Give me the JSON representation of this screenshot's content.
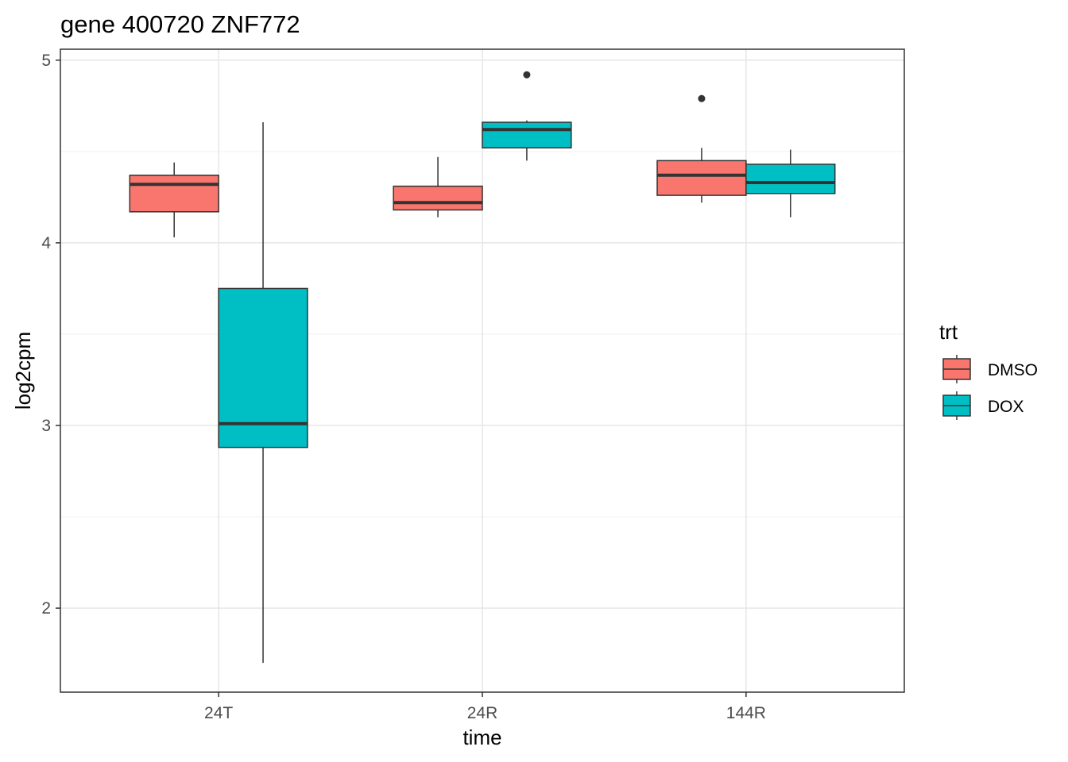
{
  "chart_data": {
    "type": "boxplot",
    "title": "gene 400720 ZNF772",
    "xlabel": "time",
    "ylabel": "log2cpm",
    "categories": [
      "24T",
      "24R",
      "144R"
    ],
    "ylim": [
      1.54,
      5.06
    ],
    "yticks": [
      2,
      3,
      4,
      5
    ],
    "grid": true,
    "legend": {
      "title": "trt",
      "position": "right",
      "entries": [
        "DMSO",
        "DOX"
      ]
    },
    "series": [
      {
        "name": "DMSO",
        "color": "#F8766D",
        "boxes": [
          {
            "category": "24T",
            "min": 4.03,
            "q1": 4.17,
            "median": 4.32,
            "q3": 4.37,
            "max": 4.44,
            "outliers": []
          },
          {
            "category": "24R",
            "min": 4.14,
            "q1": 4.18,
            "median": 4.22,
            "q3": 4.31,
            "max": 4.47,
            "outliers": []
          },
          {
            "category": "144R",
            "min": 4.22,
            "q1": 4.26,
            "median": 4.37,
            "q3": 4.45,
            "max": 4.52,
            "outliers": [
              4.79
            ]
          }
        ]
      },
      {
        "name": "DOX",
        "color": "#00BFC4",
        "boxes": [
          {
            "category": "24T",
            "min": 1.7,
            "q1": 2.88,
            "median": 3.01,
            "q3": 3.75,
            "max": 4.66,
            "outliers": []
          },
          {
            "category": "24R",
            "min": 4.45,
            "q1": 4.52,
            "median": 4.62,
            "q3": 4.66,
            "max": 4.67,
            "outliers": [
              4.92
            ]
          },
          {
            "category": "144R",
            "min": 4.14,
            "q1": 4.27,
            "median": 4.33,
            "q3": 4.43,
            "max": 4.51,
            "outliers": []
          }
        ]
      }
    ]
  }
}
